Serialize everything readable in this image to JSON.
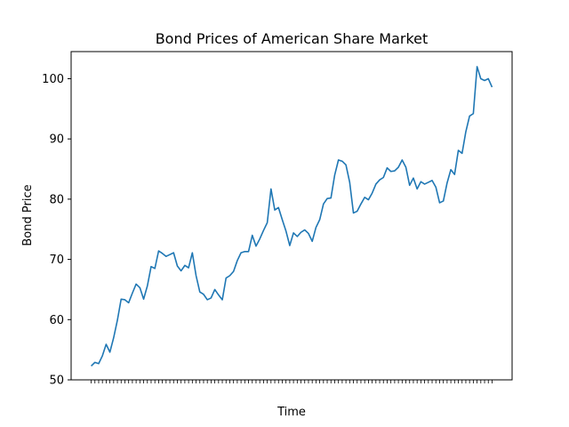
{
  "chart_data": {
    "type": "line",
    "title": "Bond Prices of American Share Market",
    "xlabel": "Time",
    "ylabel": "Bond Price",
    "ylim": [
      50,
      104.5
    ],
    "yticks": [
      50,
      60,
      70,
      80,
      90,
      100
    ],
    "grid": false,
    "line_color": "#1f77b4",
    "series": [
      {
        "values": [
          52.3,
          52.9,
          52.7,
          54.0,
          55.9,
          54.6,
          57.0,
          59.9,
          63.4,
          63.3,
          62.8,
          64.4,
          65.9,
          65.3,
          63.4,
          65.6,
          68.8,
          68.5,
          71.4,
          71.0,
          70.5,
          70.8,
          71.1,
          68.9,
          68.1,
          69.0,
          68.6,
          71.1,
          67.3,
          64.6,
          64.2,
          63.3,
          63.6,
          65.0,
          64.1,
          63.3,
          66.9,
          67.3,
          68.0,
          69.8,
          71.1,
          71.3,
          71.3,
          74.0,
          72.2,
          73.4,
          74.8,
          76.1,
          81.7,
          78.2,
          78.6,
          76.6,
          74.7,
          72.3,
          74.4,
          73.8,
          74.5,
          74.9,
          74.3,
          73.0,
          75.3,
          76.6,
          79.2,
          80.1,
          80.2,
          84.0,
          86.5,
          86.3,
          85.7,
          82.8,
          77.7,
          78.0,
          79.2,
          80.3,
          79.9,
          81.0,
          82.5,
          83.2,
          83.6,
          85.2,
          84.6,
          84.7,
          85.3,
          86.5,
          85.3,
          82.3,
          83.5,
          81.7,
          82.9,
          82.5,
          82.8,
          83.1,
          82.0,
          79.4,
          79.7,
          82.7,
          84.9,
          84.1,
          88.1,
          87.6,
          91.2,
          93.8,
          94.2,
          102.0,
          100.0,
          99.7,
          100.0,
          98.6
        ]
      }
    ],
    "x_tick_count": 108
  }
}
